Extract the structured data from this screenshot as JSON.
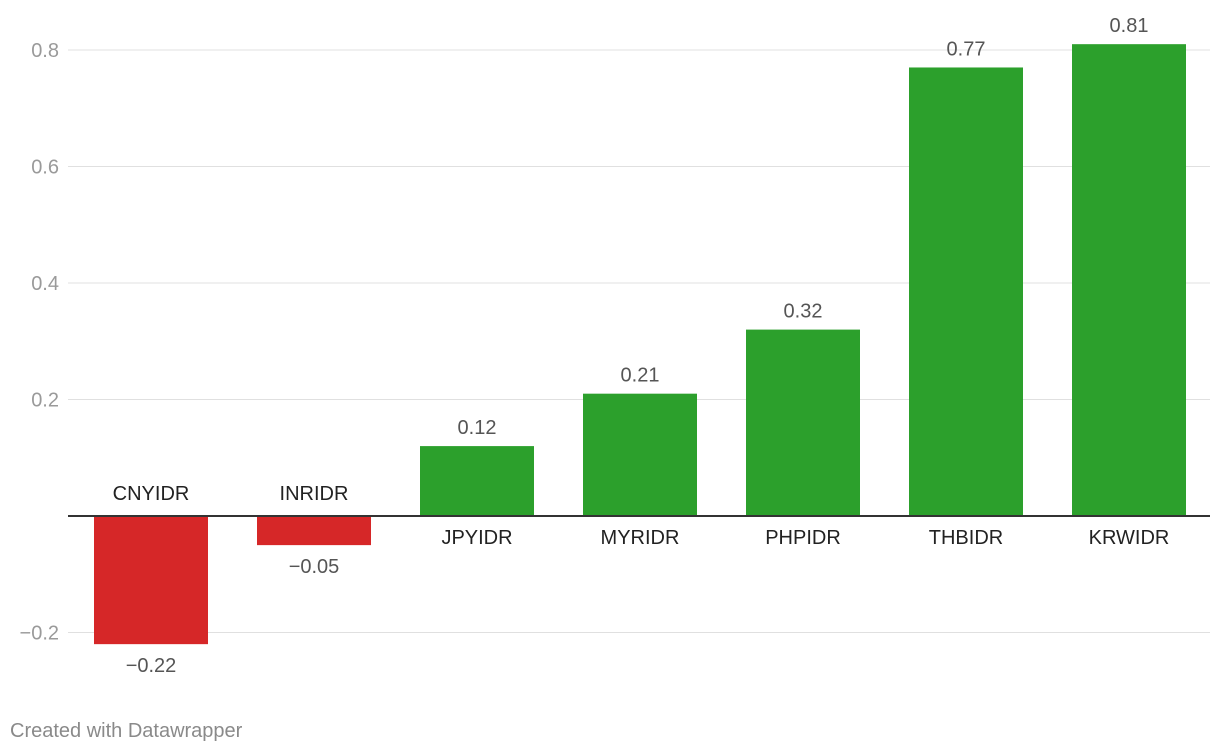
{
  "chart_data": {
    "type": "bar",
    "categories": [
      "CNYIDR",
      "INRIDR",
      "JPYIDR",
      "MYRIDR",
      "PHPIDR",
      "THBIDR",
      "KRWIDR"
    ],
    "values": [
      -0.22,
      -0.05,
      0.12,
      0.21,
      0.32,
      0.77,
      0.81
    ],
    "value_labels": [
      "−0.22",
      "−0.05",
      "0.12",
      "0.21",
      "0.32",
      "0.77",
      "0.81"
    ],
    "ylim": [
      -0.25,
      0.85
    ],
    "yticks": [
      -0.2,
      0.2,
      0.4,
      0.6,
      0.8
    ],
    "ytick_labels": [
      "−0.2",
      "0.2",
      "0.4",
      "0.6",
      "0.8"
    ],
    "grid": true,
    "colors": {
      "positive": "#2ca02c",
      "negative": "#d62728",
      "grid": "#e0e0e0",
      "axis": "#333333",
      "tick_text": "#9a9a9a",
      "value_text": "#555555",
      "category_text": "#222222"
    }
  },
  "footer": {
    "credit": "Created with Datawrapper"
  }
}
